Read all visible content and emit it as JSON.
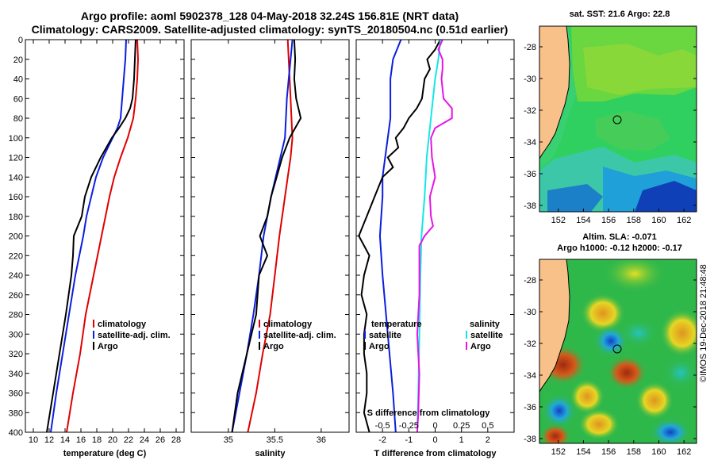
{
  "header": {
    "line1": "Argo profile: aoml 5902378_128 04-May-2018 32.24S 156.81E (NRT data)",
    "line2": "Climatology: CARS2009. Satellite-adjusted climatology: synTS_20180504.nc (0.51d earlier)"
  },
  "credit": "©IMOS 19-Dec-2018 21:48:48",
  "colors": {
    "climatology": "#e00000",
    "satellite": "#0a1ee0",
    "argo": "#000000",
    "sat_salinity": "#14e6e6",
    "argo_salinity": "#e614e6"
  },
  "chart_data": [
    {
      "type": "line",
      "panel": "temperature",
      "xlabel": "temperature (deg C)",
      "ylabel": "",
      "xlim": [
        9,
        29
      ],
      "ylim": [
        400,
        0
      ],
      "xticks": [
        10,
        12,
        14,
        16,
        18,
        20,
        22,
        24,
        26,
        28
      ],
      "yticks": [
        0,
        20,
        40,
        60,
        80,
        100,
        120,
        140,
        160,
        180,
        200,
        220,
        240,
        260,
        280,
        300,
        320,
        340,
        360,
        380,
        400
      ],
      "legend": {
        "position": "lower-right",
        "entries": [
          "climatology",
          "satellite-adj. clim.",
          "Argo"
        ]
      },
      "series": [
        {
          "name": "climatology",
          "color": "#e00000",
          "depth": [
            0,
            20,
            40,
            60,
            80,
            100,
            120,
            140,
            160,
            180,
            200,
            240,
            280,
            320,
            360,
            400
          ],
          "values": [
            23.1,
            23.2,
            23.1,
            22.9,
            22.6,
            21.9,
            21.0,
            20.2,
            19.6,
            19.1,
            18.6,
            17.6,
            16.6,
            15.9,
            15.0,
            14.2
          ]
        },
        {
          "name": "satellite-adj. clim.",
          "color": "#0a1ee0",
          "depth": [
            0,
            20,
            40,
            60,
            80,
            90,
            100,
            120,
            140,
            160,
            180,
            200,
            240,
            280,
            320,
            360,
            400
          ],
          "values": [
            21.7,
            21.6,
            21.4,
            21.2,
            21.0,
            20.6,
            20.0,
            18.8,
            17.9,
            17.3,
            16.7,
            16.3,
            15.3,
            14.5,
            13.7,
            12.9,
            12.2
          ]
        },
        {
          "name": "Argo",
          "color": "#000000",
          "depth": [
            0,
            20,
            40,
            60,
            70,
            80,
            90,
            100,
            120,
            140,
            160,
            180,
            200,
            220,
            240,
            280,
            320,
            360,
            400
          ],
          "values": [
            22.9,
            22.8,
            22.7,
            22.5,
            22.2,
            21.6,
            20.8,
            19.9,
            18.5,
            17.3,
            16.5,
            16.1,
            15.1,
            15.0,
            14.8,
            14.1,
            13.3,
            12.5,
            11.7
          ]
        }
      ]
    },
    {
      "type": "line",
      "panel": "salinity",
      "xlabel": "salinity",
      "ylabel": "",
      "xlim": [
        34.6,
        36.3
      ],
      "ylim": [
        400,
        0
      ],
      "xticks": [
        35,
        35.5,
        36
      ],
      "xticklabels": [
        "35",
        "35.5",
        "36"
      ],
      "legend": {
        "position": "lower-left",
        "entries": [
          "climatology",
          "satellite-adj. clim.",
          "Argo"
        ]
      },
      "series": [
        {
          "name": "climatology",
          "color": "#e00000",
          "depth": [
            0,
            20,
            40,
            60,
            80,
            100,
            120,
            140,
            160,
            180,
            200,
            240,
            280,
            320,
            360,
            400
          ],
          "values": [
            35.64,
            35.65,
            35.66,
            35.67,
            35.68,
            35.69,
            35.67,
            35.64,
            35.61,
            35.58,
            35.55,
            35.5,
            35.45,
            35.37,
            35.3,
            35.21
          ]
        },
        {
          "name": "satellite-adj. clim.",
          "color": "#0a1ee0",
          "depth": [
            0,
            20,
            40,
            60,
            80,
            100,
            120,
            140,
            160,
            180,
            200,
            240,
            280,
            320,
            360,
            400
          ],
          "values": [
            35.69,
            35.67,
            35.65,
            35.63,
            35.62,
            35.61,
            35.56,
            35.51,
            35.46,
            35.42,
            35.38,
            35.33,
            35.27,
            35.2,
            35.12,
            35.04
          ]
        },
        {
          "name": "Argo",
          "color": "#000000",
          "depth": [
            0,
            20,
            40,
            60,
            80,
            90,
            100,
            120,
            140,
            160,
            180,
            200,
            220,
            240,
            280,
            320,
            360,
            400
          ],
          "values": [
            35.71,
            35.72,
            35.71,
            35.73,
            35.78,
            35.72,
            35.66,
            35.58,
            35.52,
            35.46,
            35.42,
            35.34,
            35.42,
            35.33,
            35.3,
            35.2,
            35.1,
            35.04
          ]
        }
      ]
    },
    {
      "type": "line",
      "panel": "difference",
      "xlabel": "T difference from climatology",
      "xlabel_top": "S difference from climatology",
      "xlim": [
        -3,
        3
      ],
      "ylim": [
        400,
        0
      ],
      "xticks": [
        -2,
        -1,
        0,
        1,
        2
      ],
      "xticklabels": [
        "-2",
        "-1",
        "0",
        "1",
        "2"
      ],
      "xticks_s": [
        -0.5,
        -0.25,
        0,
        0.25,
        0.5
      ],
      "xticklabels_s": [
        "-0.5",
        "-0.25",
        "0",
        "0.25",
        "0.5"
      ],
      "legend": {
        "position": "lower-center",
        "groups": [
          {
            "title": "temperature",
            "entries": [
              "satellite",
              "Argo"
            ]
          },
          {
            "title": "salinity",
            "entries": [
              "satellite",
              "Argo"
            ]
          }
        ]
      },
      "series": [
        {
          "name": "T satellite",
          "color": "#0a1ee0",
          "depth": [
            0,
            20,
            40,
            60,
            80,
            100,
            120,
            140,
            160,
            200,
            240,
            300,
            360,
            400
          ],
          "values": [
            -1.3,
            -1.6,
            -1.7,
            -1.7,
            -1.7,
            -1.8,
            -1.9,
            -2.0,
            -2.0,
            -2.1,
            -2.0,
            -1.8,
            -1.6,
            -1.5
          ]
        },
        {
          "name": "T Argo",
          "color": "#000000",
          "depth": [
            0,
            10,
            20,
            30,
            40,
            60,
            70,
            80,
            90,
            100,
            110,
            120,
            130,
            140,
            160,
            180,
            200,
            220,
            240,
            260,
            280,
            300,
            320,
            340,
            360,
            380,
            400
          ],
          "values": [
            0.2,
            0.0,
            -0.3,
            -0.2,
            -0.4,
            -0.5,
            -0.7,
            -1.0,
            -1.2,
            -1.5,
            -1.4,
            -1.8,
            -1.6,
            -2.0,
            -2.3,
            -2.6,
            -2.9,
            -2.5,
            -2.7,
            -2.8,
            -2.6,
            -2.7,
            -2.7,
            -2.6,
            -2.6,
            -2.7,
            -2.5
          ]
        },
        {
          "name": "S satellite",
          "color": "#14e6e6",
          "depth": [
            0,
            20,
            40,
            60,
            80,
            100,
            120,
            140,
            160,
            200,
            240,
            300,
            360,
            400
          ],
          "values": [
            0.05,
            0.03,
            0.0,
            -0.02,
            -0.04,
            -0.06,
            -0.08,
            -0.09,
            -0.1,
            -0.13,
            -0.14,
            -0.15,
            -0.16,
            -0.17
          ]
        },
        {
          "name": "S Argo",
          "color": "#e614e6",
          "depth": [
            0,
            10,
            20,
            30,
            40,
            50,
            60,
            70,
            80,
            90,
            100,
            120,
            140,
            160,
            180,
            190,
            200,
            210,
            220,
            260,
            300,
            340,
            380,
            400
          ],
          "values": [
            0.07,
            0.03,
            0.07,
            0.07,
            0.06,
            0.07,
            0.08,
            0.16,
            0.16,
            0.0,
            -0.04,
            -0.03,
            0.0,
            -0.05,
            -0.04,
            -0.02,
            -0.1,
            -0.15,
            -0.15,
            -0.15,
            -0.17,
            -0.15,
            -0.16,
            -0.17
          ]
        }
      ]
    },
    {
      "type": "heatmap",
      "panel": "sst-map",
      "title": "sat. SST: 21.6 Argo: 22.8",
      "xlim": [
        150.5,
        163
      ],
      "ylim": [
        -38.4,
        -26.7
      ],
      "xticks": [
        152,
        154,
        156,
        158,
        160,
        162
      ],
      "yticks": [
        -28,
        -30,
        -32,
        -34,
        -36,
        -38
      ],
      "argo_lon": 156.81,
      "argo_lat": -32.24
    },
    {
      "type": "heatmap",
      "panel": "sla-map",
      "title": "Altim. SLA: -0.071",
      "subtitle": "Argo h1000: -0.12 h2000: -0.17",
      "xlim": [
        150.5,
        163
      ],
      "ylim": [
        -38.3,
        -26.7
      ],
      "xticks": [
        152,
        154,
        156,
        158,
        160,
        162
      ],
      "yticks": [
        -28,
        -30,
        -32,
        -34,
        -36,
        -38
      ],
      "argo_lon": 156.81,
      "argo_lat": -32.24
    }
  ]
}
